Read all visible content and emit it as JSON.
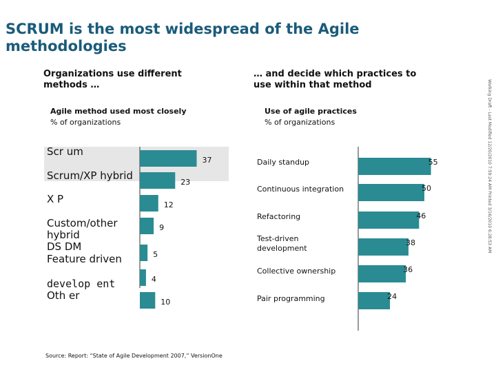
{
  "title": "SCRUM is the most widespread of the Agile methodologies",
  "left_heading": "Organizations use different methods …",
  "right_heading": "… and decide which practices to use within that method",
  "left_chart": {
    "title": "Agile method used most closely",
    "subtitle": "% of organizations"
  },
  "right_chart": {
    "title": "Use of agile practices",
    "subtitle": "% of organizations"
  },
  "side_text": "Working Draft - Last Modified 12/20/2010 7:59:24 AM    Printed 3/16/2010 6:28:53 AM",
  "source": "Source: Report: “State of Agile Development 2007,” VersionOne",
  "colors": {
    "bar": "#2a8b93",
    "title": "#1a5b7a",
    "highlight": "#e6e6e6",
    "axis": "#333333"
  },
  "chart_data": [
    {
      "type": "bar",
      "orientation": "horizontal",
      "title": "Agile method used most closely",
      "subtitle": "% of organizations",
      "categories": [
        "Scrum",
        "Scrum/XP hybrid",
        "XP",
        "Custom/other hybrid",
        "DSDM",
        "Feature driven development",
        "Other"
      ],
      "category_labels_rendered": [
        "Scr um",
        "Scrum/XP hybrid",
        "X P",
        "Custom/other hybrid",
        "DS DM",
        "Feature driven",
        "develop ent",
        "Oth er"
      ],
      "values": [
        37,
        23,
        12,
        9,
        5,
        4,
        10
      ],
      "highlighted": [
        true,
        true,
        false,
        false,
        false,
        false,
        false
      ]
    },
    {
      "type": "bar",
      "orientation": "horizontal",
      "title": "Use of agile practices",
      "subtitle": "% of organizations",
      "categories": [
        "Daily standup",
        "Continuous integration",
        "Refactoring",
        "Test-driven development",
        "Collective ownership",
        "Pair programming"
      ],
      "values": [
        55,
        50,
        46,
        38,
        36,
        24
      ]
    }
  ]
}
